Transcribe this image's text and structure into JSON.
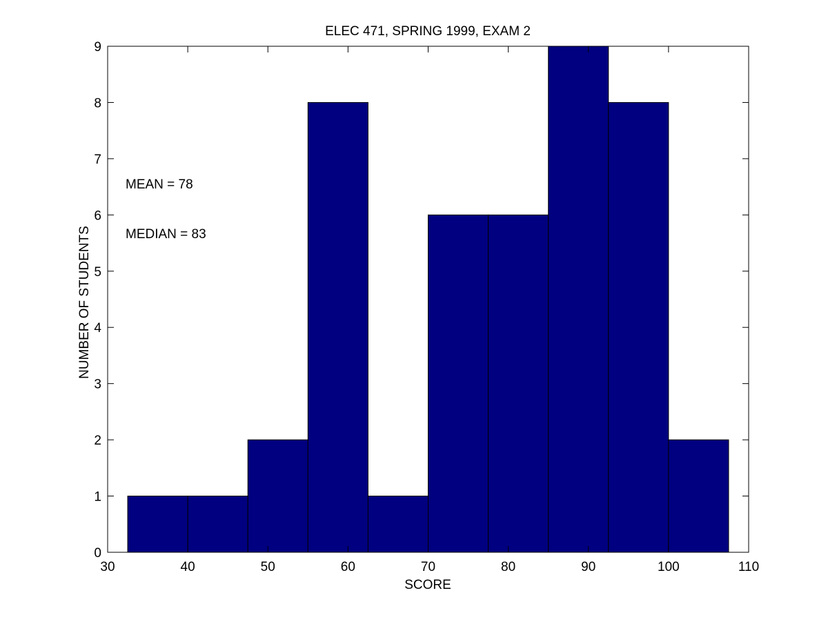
{
  "chart_data": {
    "type": "bar",
    "title": "ELEC 471, SPRING 1999, EXAM 2",
    "xlabel": "SCORE",
    "ylabel": "NUMBER OF STUDENTS",
    "xlim": [
      30,
      110
    ],
    "ylim": [
      0,
      9
    ],
    "xticks": [
      30,
      40,
      50,
      60,
      70,
      80,
      90,
      100,
      110
    ],
    "yticks": [
      0,
      1,
      2,
      3,
      4,
      5,
      6,
      7,
      8,
      9
    ],
    "bin_width": 7.5,
    "bin_centers": [
      36.25,
      43.75,
      51.25,
      58.75,
      66.25,
      73.75,
      81.25,
      88.75,
      96.25,
      103.75
    ],
    "values": [
      1,
      1,
      2,
      8,
      1,
      6,
      6,
      9,
      8,
      2
    ],
    "bar_color": "#000080",
    "grid": false,
    "annotations": [
      "MEAN = 78",
      "MEDIAN = 83"
    ]
  }
}
